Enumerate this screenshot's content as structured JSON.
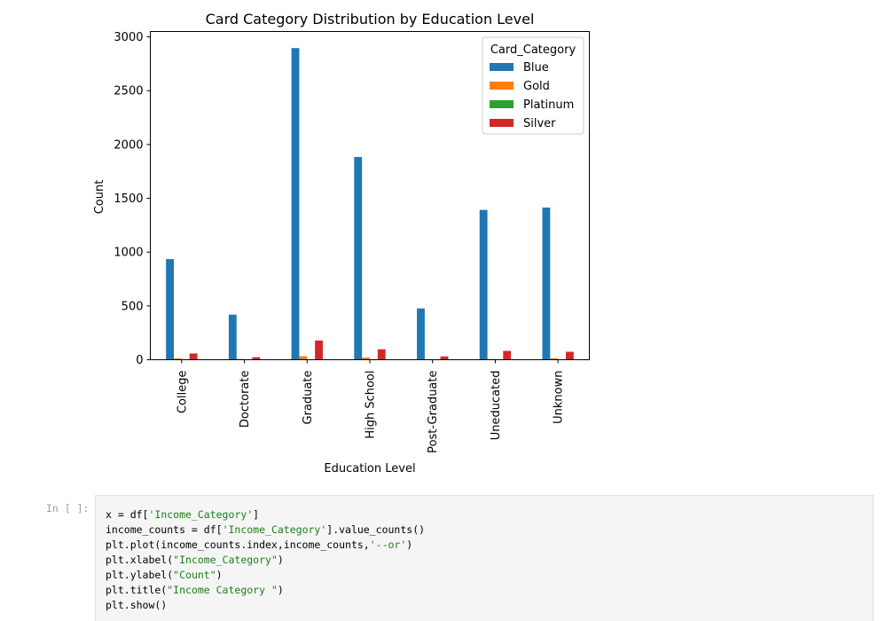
{
  "chart_data": {
    "type": "bar",
    "title": "Card Category Distribution by Education Level",
    "xlabel": "Education Level",
    "ylabel": "Count",
    "ylim": [
      0,
      3050
    ],
    "yticks": [
      0,
      500,
      1000,
      1500,
      2000,
      2500,
      3000
    ],
    "grid": false,
    "legend_title": "Card_Category",
    "legend_position": "top-right",
    "categories": [
      "College",
      "Doctorate",
      "Graduate",
      "High School",
      "Post-Graduate",
      "Uneducated",
      "Unknown"
    ],
    "series": [
      {
        "name": "Blue",
        "color": "#1f77b4",
        "values": [
          935,
          419,
          2896,
          1884,
          477,
          1392,
          1414
        ]
      },
      {
        "name": "Gold",
        "color": "#ff7f0e",
        "values": [
          12,
          7,
          33,
          20,
          5,
          7,
          14
        ]
      },
      {
        "name": "Platinum",
        "color": "#2ca02c",
        "values": [
          3,
          1,
          4,
          2,
          1,
          1,
          2
        ]
      },
      {
        "name": "Silver",
        "color": "#d62728",
        "values": [
          58,
          24,
          179,
          97,
          31,
          82,
          74
        ]
      }
    ]
  },
  "notebook_cell": {
    "prompt": "In [ ]:",
    "code_lines": [
      [
        {
          "t": "x = df["
        },
        {
          "t": "'Income_Category'",
          "s": true
        },
        {
          "t": "]"
        }
      ],
      [
        {
          "t": "income_counts = df["
        },
        {
          "t": "'Income_Category'",
          "s": true
        },
        {
          "t": "].value_counts()"
        }
      ],
      [
        {
          "t": "plt.plot(income_counts.index,income_counts,"
        },
        {
          "t": "'--or'",
          "s": true
        },
        {
          "t": ")"
        }
      ],
      [
        {
          "t": "plt.xlabel("
        },
        {
          "t": "\"Income_Category\"",
          "s": true
        },
        {
          "t": ")"
        }
      ],
      [
        {
          "t": "plt.ylabel("
        },
        {
          "t": "\"Count\"",
          "s": true
        },
        {
          "t": ")"
        }
      ],
      [
        {
          "t": "plt.title("
        },
        {
          "t": "\"Income Category \"",
          "s": true
        },
        {
          "t": ")"
        }
      ],
      [
        {
          "t": "plt.show()"
        }
      ]
    ]
  }
}
